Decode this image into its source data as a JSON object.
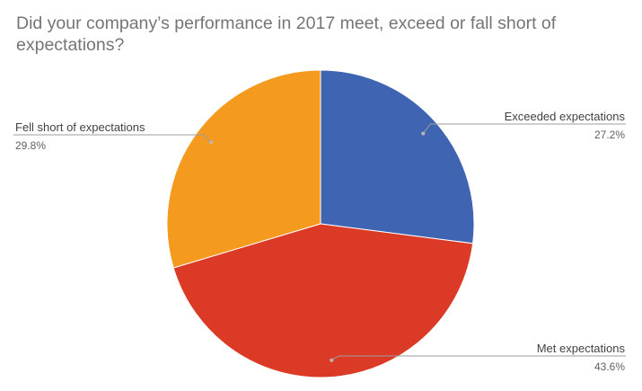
{
  "chart_data": {
    "type": "pie",
    "title": "Did your company’s performance in 2017 meet, exceed or fall short of expectations?",
    "slices": [
      {
        "label": "Exceeded expectations",
        "value": 27.2,
        "value_label": "27.2%",
        "color": "#3F65B2",
        "label_side": "right"
      },
      {
        "label": "Met expectations",
        "value": 43.6,
        "value_label": "43.6%",
        "color": "#DB3B26",
        "label_side": "right"
      },
      {
        "label": "Fell short of expectations",
        "value": 29.8,
        "value_label": "29.8%",
        "color": "#F39A1F",
        "label_side": "left"
      }
    ],
    "start_angle_deg": 0,
    "direction": "clockwise",
    "legend": "none"
  }
}
